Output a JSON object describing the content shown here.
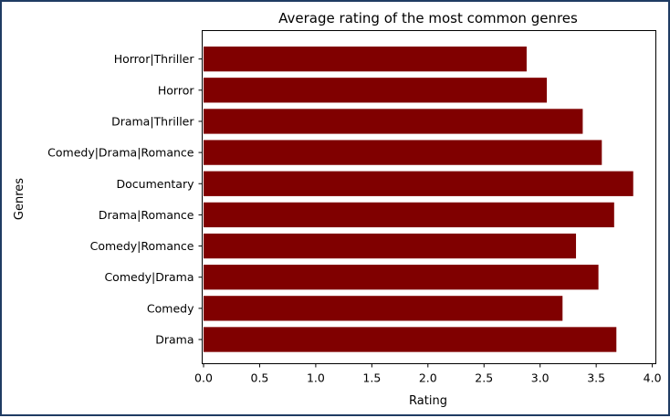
{
  "chart_data": {
    "type": "bar",
    "orientation": "horizontal",
    "title": "Average rating of the most common genres",
    "xlabel": "Rating",
    "ylabel": "Genres",
    "categories": [
      "Drama",
      "Comedy",
      "Comedy|Drama",
      "Comedy|Romance",
      "Drama|Romance",
      "Documentary",
      "Comedy|Drama|Romance",
      "Drama|Thriller",
      "Horror",
      "Horror|Thriller"
    ],
    "values": [
      3.68,
      3.2,
      3.52,
      3.32,
      3.66,
      3.83,
      3.55,
      3.38,
      3.06,
      2.88
    ],
    "xlim": [
      0,
      4.04
    ],
    "xticks": [
      "0.0",
      "0.5",
      "1.0",
      "1.5",
      "2.0",
      "2.5",
      "3.0",
      "3.5",
      "4.0"
    ],
    "bar_color": "#800000",
    "grid": false
  }
}
